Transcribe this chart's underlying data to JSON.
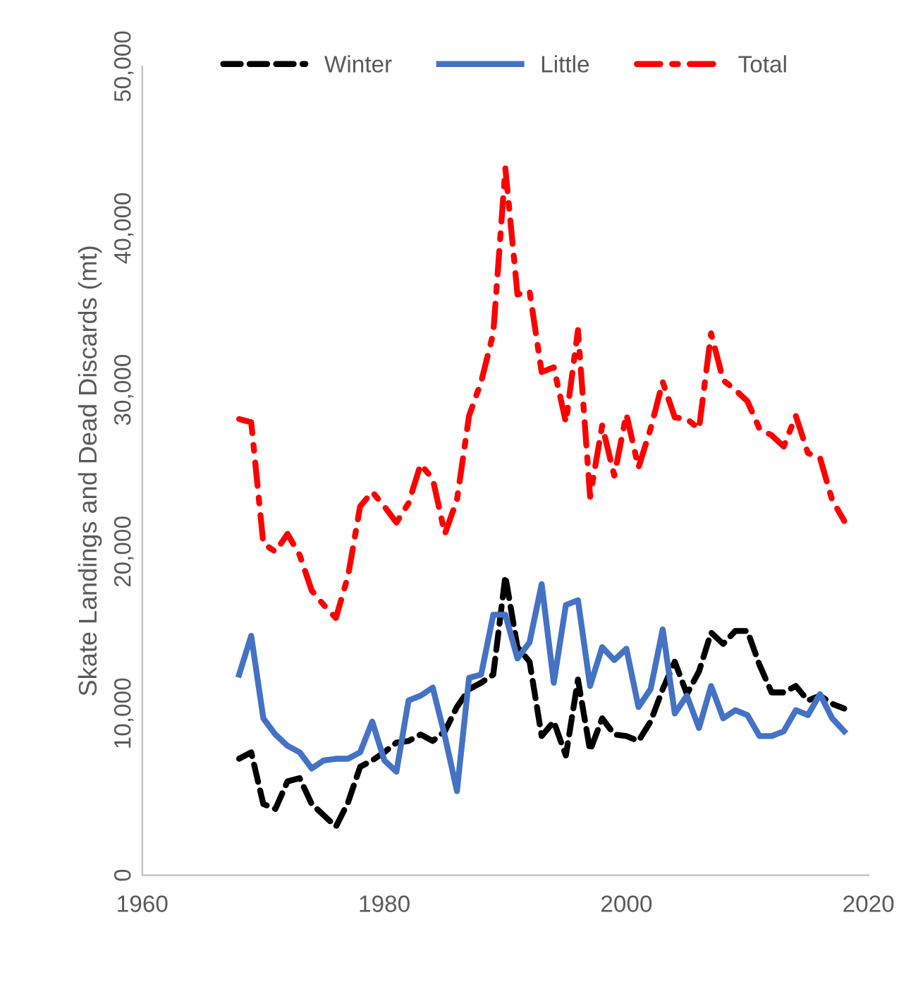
{
  "chart_data": {
    "type": "line",
    "ylabel": "Skate Landings and Dead Discards (mt)",
    "x": [
      1968,
      1969,
      1970,
      1971,
      1972,
      1973,
      1974,
      1975,
      1976,
      1977,
      1978,
      1979,
      1980,
      1981,
      1982,
      1983,
      1984,
      1985,
      1986,
      1987,
      1988,
      1989,
      1990,
      1991,
      1992,
      1993,
      1994,
      1995,
      1996,
      1997,
      1998,
      1999,
      2000,
      2001,
      2002,
      2003,
      2004,
      2005,
      2006,
      2007,
      2008,
      2009,
      2010,
      2011,
      2012,
      2013,
      2014,
      2015,
      2016,
      2017,
      2018
    ],
    "series": [
      {
        "name": "Winter",
        "color": "#000000",
        "line_style": "dashed",
        "values": [
          7200,
          7600,
          4400,
          4100,
          5800,
          6000,
          4400,
          3700,
          3000,
          4500,
          6700,
          7100,
          7600,
          8200,
          8300,
          8700,
          8300,
          8900,
          10400,
          11500,
          11900,
          12400,
          18500,
          14100,
          13200,
          8600,
          9500,
          7400,
          12100,
          7700,
          9700,
          8700,
          8600,
          8300,
          9500,
          11500,
          13200,
          11200,
          12600,
          15000,
          14300,
          15100,
          15100,
          13000,
          11300,
          11300,
          11700,
          10800,
          11100,
          10600,
          10300
        ]
      },
      {
        "name": "Little",
        "color": "#4472c4",
        "line_style": "solid",
        "values": [
          12400,
          14800,
          9700,
          8700,
          8000,
          7600,
          6600,
          7100,
          7200,
          7200,
          7600,
          9500,
          7100,
          6400,
          10800,
          11100,
          11600,
          8600,
          5200,
          12200,
          12400,
          16100,
          16100,
          13400,
          14400,
          18000,
          11900,
          16700,
          17000,
          11700,
          14100,
          13300,
          14000,
          10400,
          11500,
          15200,
          10000,
          11100,
          9100,
          11700,
          9700,
          10200,
          9900,
          8600,
          8600,
          8900,
          10200,
          9900,
          11200,
          9700,
          8900
        ]
      },
      {
        "name": "Total",
        "color": "#ff0000",
        "line_style": "dashdot",
        "values": [
          28200,
          28000,
          20500,
          20000,
          21100,
          19800,
          17600,
          16700,
          15900,
          18500,
          22800,
          23700,
          22800,
          21800,
          23000,
          25400,
          24500,
          21100,
          23200,
          28400,
          30500,
          33500,
          43700,
          35900,
          36100,
          31100,
          31400,
          28000,
          33700,
          23400,
          27800,
          24700,
          28500,
          25200,
          27600,
          30500,
          28300,
          28200,
          27600,
          33500,
          30600,
          30000,
          29300,
          27600,
          27200,
          26500,
          28400,
          26100,
          25800,
          23200,
          21900
        ]
      }
    ],
    "xlim": [
      1960,
      2020
    ],
    "xticks": [
      1960,
      1980,
      2000,
      2020
    ],
    "ylim": [
      0,
      50000
    ],
    "yticks": [
      0,
      {
        "value": 10000,
        "label": "10,000"
      },
      {
        "value": 20000,
        "label": "20,000"
      },
      {
        "value": 30000,
        "label": "30,000"
      },
      {
        "value": 40000,
        "label": "40,000"
      },
      {
        "value": 50000,
        "label": "50,000"
      }
    ],
    "grid": false,
    "legend": "top",
    "marker": "none"
  }
}
